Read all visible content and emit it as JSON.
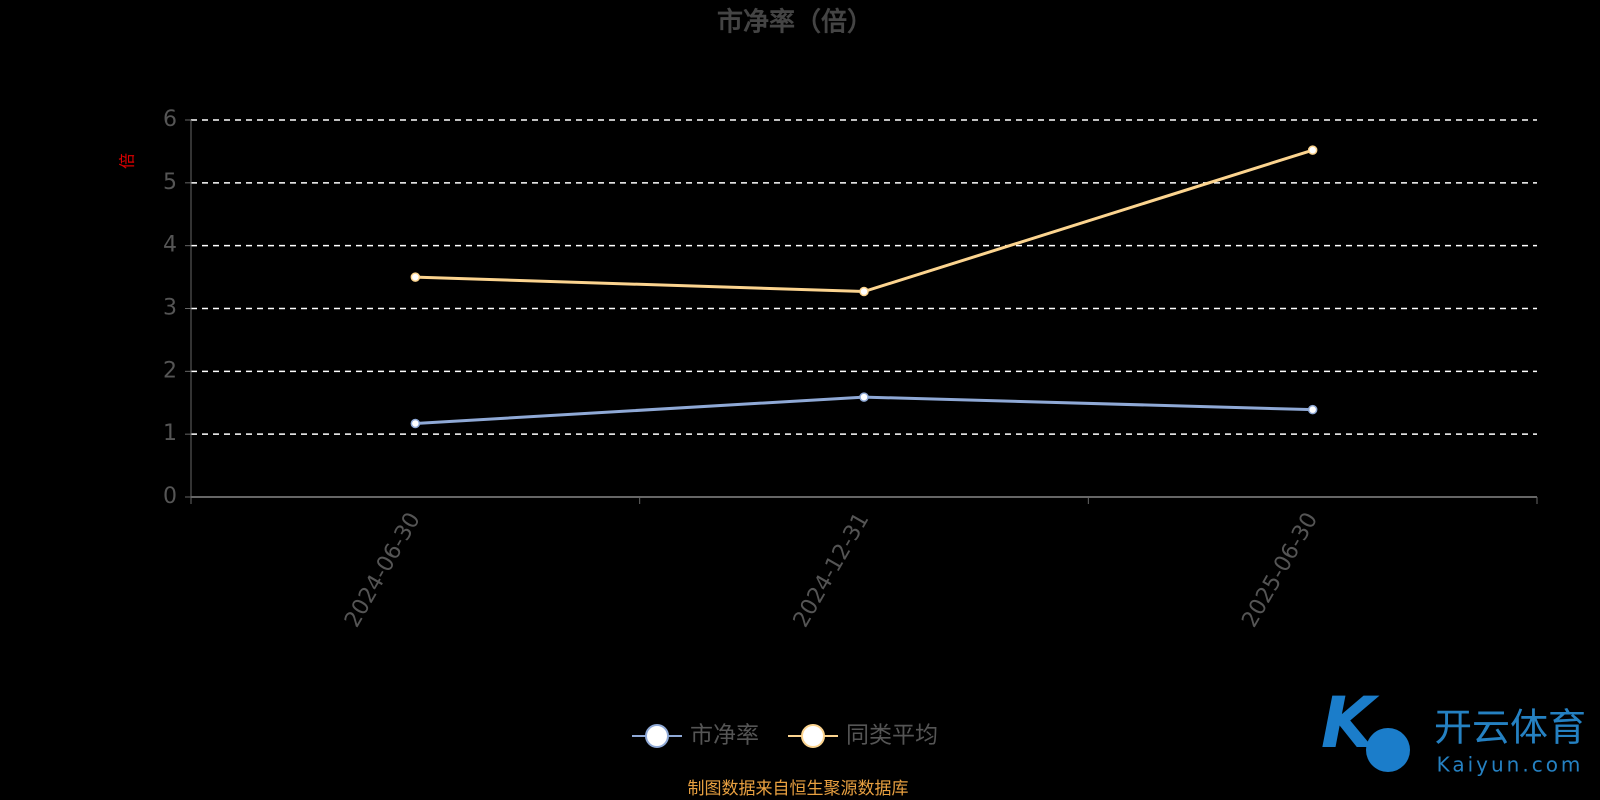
{
  "chart_data": {
    "type": "line",
    "title": "市净率（倍）",
    "y_label": "倍",
    "categories": [
      "2024-06-30",
      "2024-12-31",
      "2025-06-30"
    ],
    "series": [
      {
        "name": "市净率",
        "color": "#8fa9d6",
        "values": [
          1.17,
          1.59,
          1.39
        ]
      },
      {
        "name": "同类平均",
        "color": "#fcd48f",
        "values": [
          3.5,
          3.27,
          5.52
        ]
      }
    ],
    "ylim": [
      0,
      6
    ],
    "yticks": [
      0,
      1,
      2,
      3,
      4,
      5,
      6
    ],
    "grid": true,
    "legend": "bottom",
    "source": "制图数据来自恒生聚源数据库"
  },
  "watermark": {
    "title": "开云体育",
    "subtitle": "Kaiyun.com"
  }
}
